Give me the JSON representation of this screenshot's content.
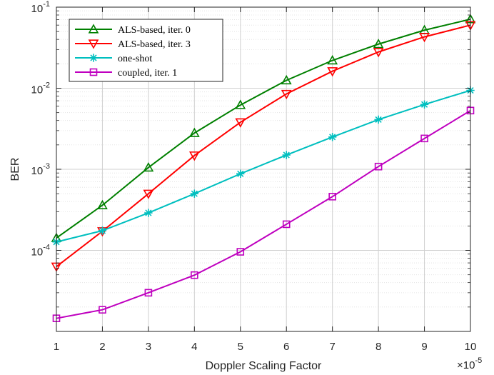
{
  "chart_data": {
    "type": "line",
    "xlabel": "Doppler Scaling Factor",
    "ylabel": "BER",
    "x_multiplier_label": {
      "base": "×10",
      "exponent": "-5"
    },
    "x": [
      1,
      2,
      3,
      4,
      5,
      6,
      7,
      8,
      9,
      10
    ],
    "x_ticks": [
      "1",
      "2",
      "3",
      "4",
      "5",
      "6",
      "7",
      "8",
      "9",
      "10"
    ],
    "xlim": [
      1,
      10
    ],
    "y_scale": "log",
    "ylim": [
      1e-05,
      0.1
    ],
    "y_ticks": [
      {
        "value": 0.1,
        "base": "10",
        "exponent": "-1"
      },
      {
        "value": 0.01,
        "base": "10",
        "exponent": "-2"
      },
      {
        "value": 0.001,
        "base": "10",
        "exponent": "-3"
      },
      {
        "value": 0.0001,
        "base": "10",
        "exponent": "-4"
      }
    ],
    "grid": true,
    "legend_position": "top-left",
    "series": [
      {
        "name": "ALS-based, iter. 0",
        "color": "#008000",
        "marker": "triangle-up",
        "values": [
          0.000142,
          0.00036,
          0.00105,
          0.0028,
          0.0062,
          0.0125,
          0.022,
          0.035,
          0.052,
          0.071
        ]
      },
      {
        "name": "ALS-based, iter. 3",
        "color": "#ff0000",
        "marker": "triangle-down",
        "values": [
          6.3e-05,
          0.000172,
          0.0005,
          0.00148,
          0.0038,
          0.0085,
          0.0162,
          0.028,
          0.043,
          0.06
        ]
      },
      {
        "name": "one-shot",
        "color": "#00bfbf",
        "marker": "asterisk",
        "values": [
          0.000127,
          0.000175,
          0.00029,
          0.0005,
          0.00088,
          0.0015,
          0.0025,
          0.0041,
          0.0063,
          0.0094
        ]
      },
      {
        "name": "coupled, iter. 1",
        "color": "#bf00bf",
        "marker": "square",
        "values": [
          1.45e-05,
          1.85e-05,
          3e-05,
          4.95e-05,
          9.6e-05,
          0.00021,
          0.00046,
          0.00108,
          0.0024,
          0.0053
        ]
      }
    ]
  }
}
